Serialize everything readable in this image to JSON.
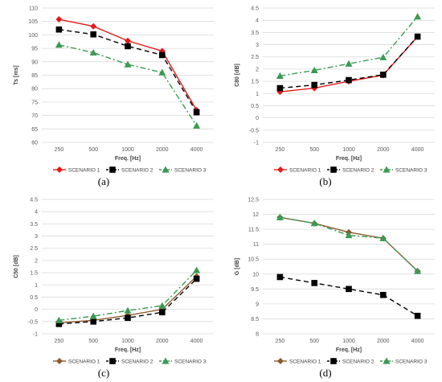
{
  "chart_data": [
    {
      "type": "line",
      "caption": "(a)",
      "xlabel": "Freq. [Hz]",
      "ylabel": "Ts [ms]",
      "categories": [
        "250",
        "500",
        "1000",
        "2000",
        "4000"
      ],
      "yticks": [
        "60",
        "65",
        "70",
        "75",
        "80",
        "85",
        "90",
        "95",
        "100",
        "105",
        "110"
      ],
      "ylim": [
        60,
        110
      ],
      "grid": true,
      "legend": "bottom",
      "series": [
        {
          "name": "SCENARIO 1",
          "values": [
            105.8,
            103.2,
            97.8,
            94.0,
            72.0
          ],
          "color": "#e31a1c",
          "marker": "diamond",
          "dash": "solid"
        },
        {
          "name": "SCENARIO 2",
          "values": [
            102.0,
            100.2,
            95.8,
            92.5,
            71.2
          ],
          "color": "#000000",
          "marker": "square",
          "dash": "dash"
        },
        {
          "name": "SCENARIO 3",
          "values": [
            96.3,
            93.4,
            89.0,
            86.0,
            66.2
          ],
          "color": "#3a9a52",
          "marker": "triangle",
          "dash": "dashdot"
        }
      ]
    },
    {
      "type": "line",
      "caption": "(b)",
      "xlabel": "Freq. [Hz]",
      "ylabel": "C80 [dB]",
      "categories": [
        "250",
        "500",
        "1000",
        "2000",
        "4000"
      ],
      "yticks": [
        "-1",
        "-0.5",
        "0",
        "0.5",
        "1",
        "1.5",
        "2",
        "2.5",
        "3",
        "3.5",
        "4",
        "4.5"
      ],
      "ylim": [
        -1,
        4.5
      ],
      "grid": true,
      "legend": "bottom",
      "series": [
        {
          "name": "SCENARIO 1",
          "values": [
            1.07,
            1.22,
            1.5,
            1.75,
            3.33
          ],
          "color": "#e31a1c",
          "marker": "diamond",
          "dash": "solid"
        },
        {
          "name": "SCENARIO 2",
          "values": [
            1.22,
            1.35,
            1.55,
            1.77,
            3.33
          ],
          "color": "#000000",
          "marker": "square",
          "dash": "dash"
        },
        {
          "name": "SCENARIO 3",
          "values": [
            1.72,
            1.95,
            2.22,
            2.48,
            4.15
          ],
          "color": "#3a9a52",
          "marker": "triangle",
          "dash": "dashdot"
        }
      ]
    },
    {
      "type": "line",
      "caption": "(c)",
      "xlabel": "Freq. [Hz]",
      "ylabel": "C50 [dB]",
      "categories": [
        "250",
        "500",
        "1000",
        "2000",
        "4000"
      ],
      "yticks": [
        "-1",
        "-0.5",
        "0",
        "0.5",
        "1",
        "1.5",
        "2",
        "2.5",
        "3",
        "3.5",
        "4",
        "4.5"
      ],
      "ylim": [
        -1,
        4.5
      ],
      "grid": true,
      "legend": "bottom",
      "series": [
        {
          "name": "SCENARIO 1",
          "values": [
            -0.55,
            -0.45,
            -0.25,
            0.0,
            1.35
          ],
          "color": "#8b5a2b",
          "marker": "diamond",
          "dash": "solid"
        },
        {
          "name": "SCENARIO 2",
          "values": [
            -0.6,
            -0.5,
            -0.35,
            -0.12,
            1.25
          ],
          "color": "#000000",
          "marker": "square",
          "dash": "dash"
        },
        {
          "name": "SCENARIO 3",
          "values": [
            -0.45,
            -0.28,
            -0.05,
            0.15,
            1.6
          ],
          "color": "#3a9a52",
          "marker": "triangle",
          "dash": "dashdot"
        }
      ]
    },
    {
      "type": "line",
      "caption": "(d)",
      "xlabel": "Freq. [Hz]",
      "ylabel": "G [dB]",
      "categories": [
        "250",
        "500",
        "1000",
        "2000",
        "4000"
      ],
      "yticks": [
        "8",
        "8.5",
        "9",
        "9.5",
        "10",
        "10.5",
        "11",
        "11.5",
        "12",
        "12.5"
      ],
      "ylim": [
        8,
        12.5
      ],
      "grid": true,
      "legend": "bottom",
      "series": [
        {
          "name": "SCENARIO 1",
          "values": [
            11.9,
            11.7,
            11.4,
            11.2,
            10.1
          ],
          "color": "#8b5a2b",
          "marker": "diamond",
          "dash": "solid"
        },
        {
          "name": "SCENARIO 2",
          "values": [
            9.9,
            9.7,
            9.5,
            9.3,
            8.6
          ],
          "color": "#000000",
          "marker": "square",
          "dash": "dash"
        },
        {
          "name": "SCENARIO 3",
          "values": [
            11.9,
            11.7,
            11.3,
            11.2,
            10.1
          ],
          "color": "#3a9a52",
          "marker": "triangle",
          "dash": "dashdot"
        }
      ]
    }
  ]
}
